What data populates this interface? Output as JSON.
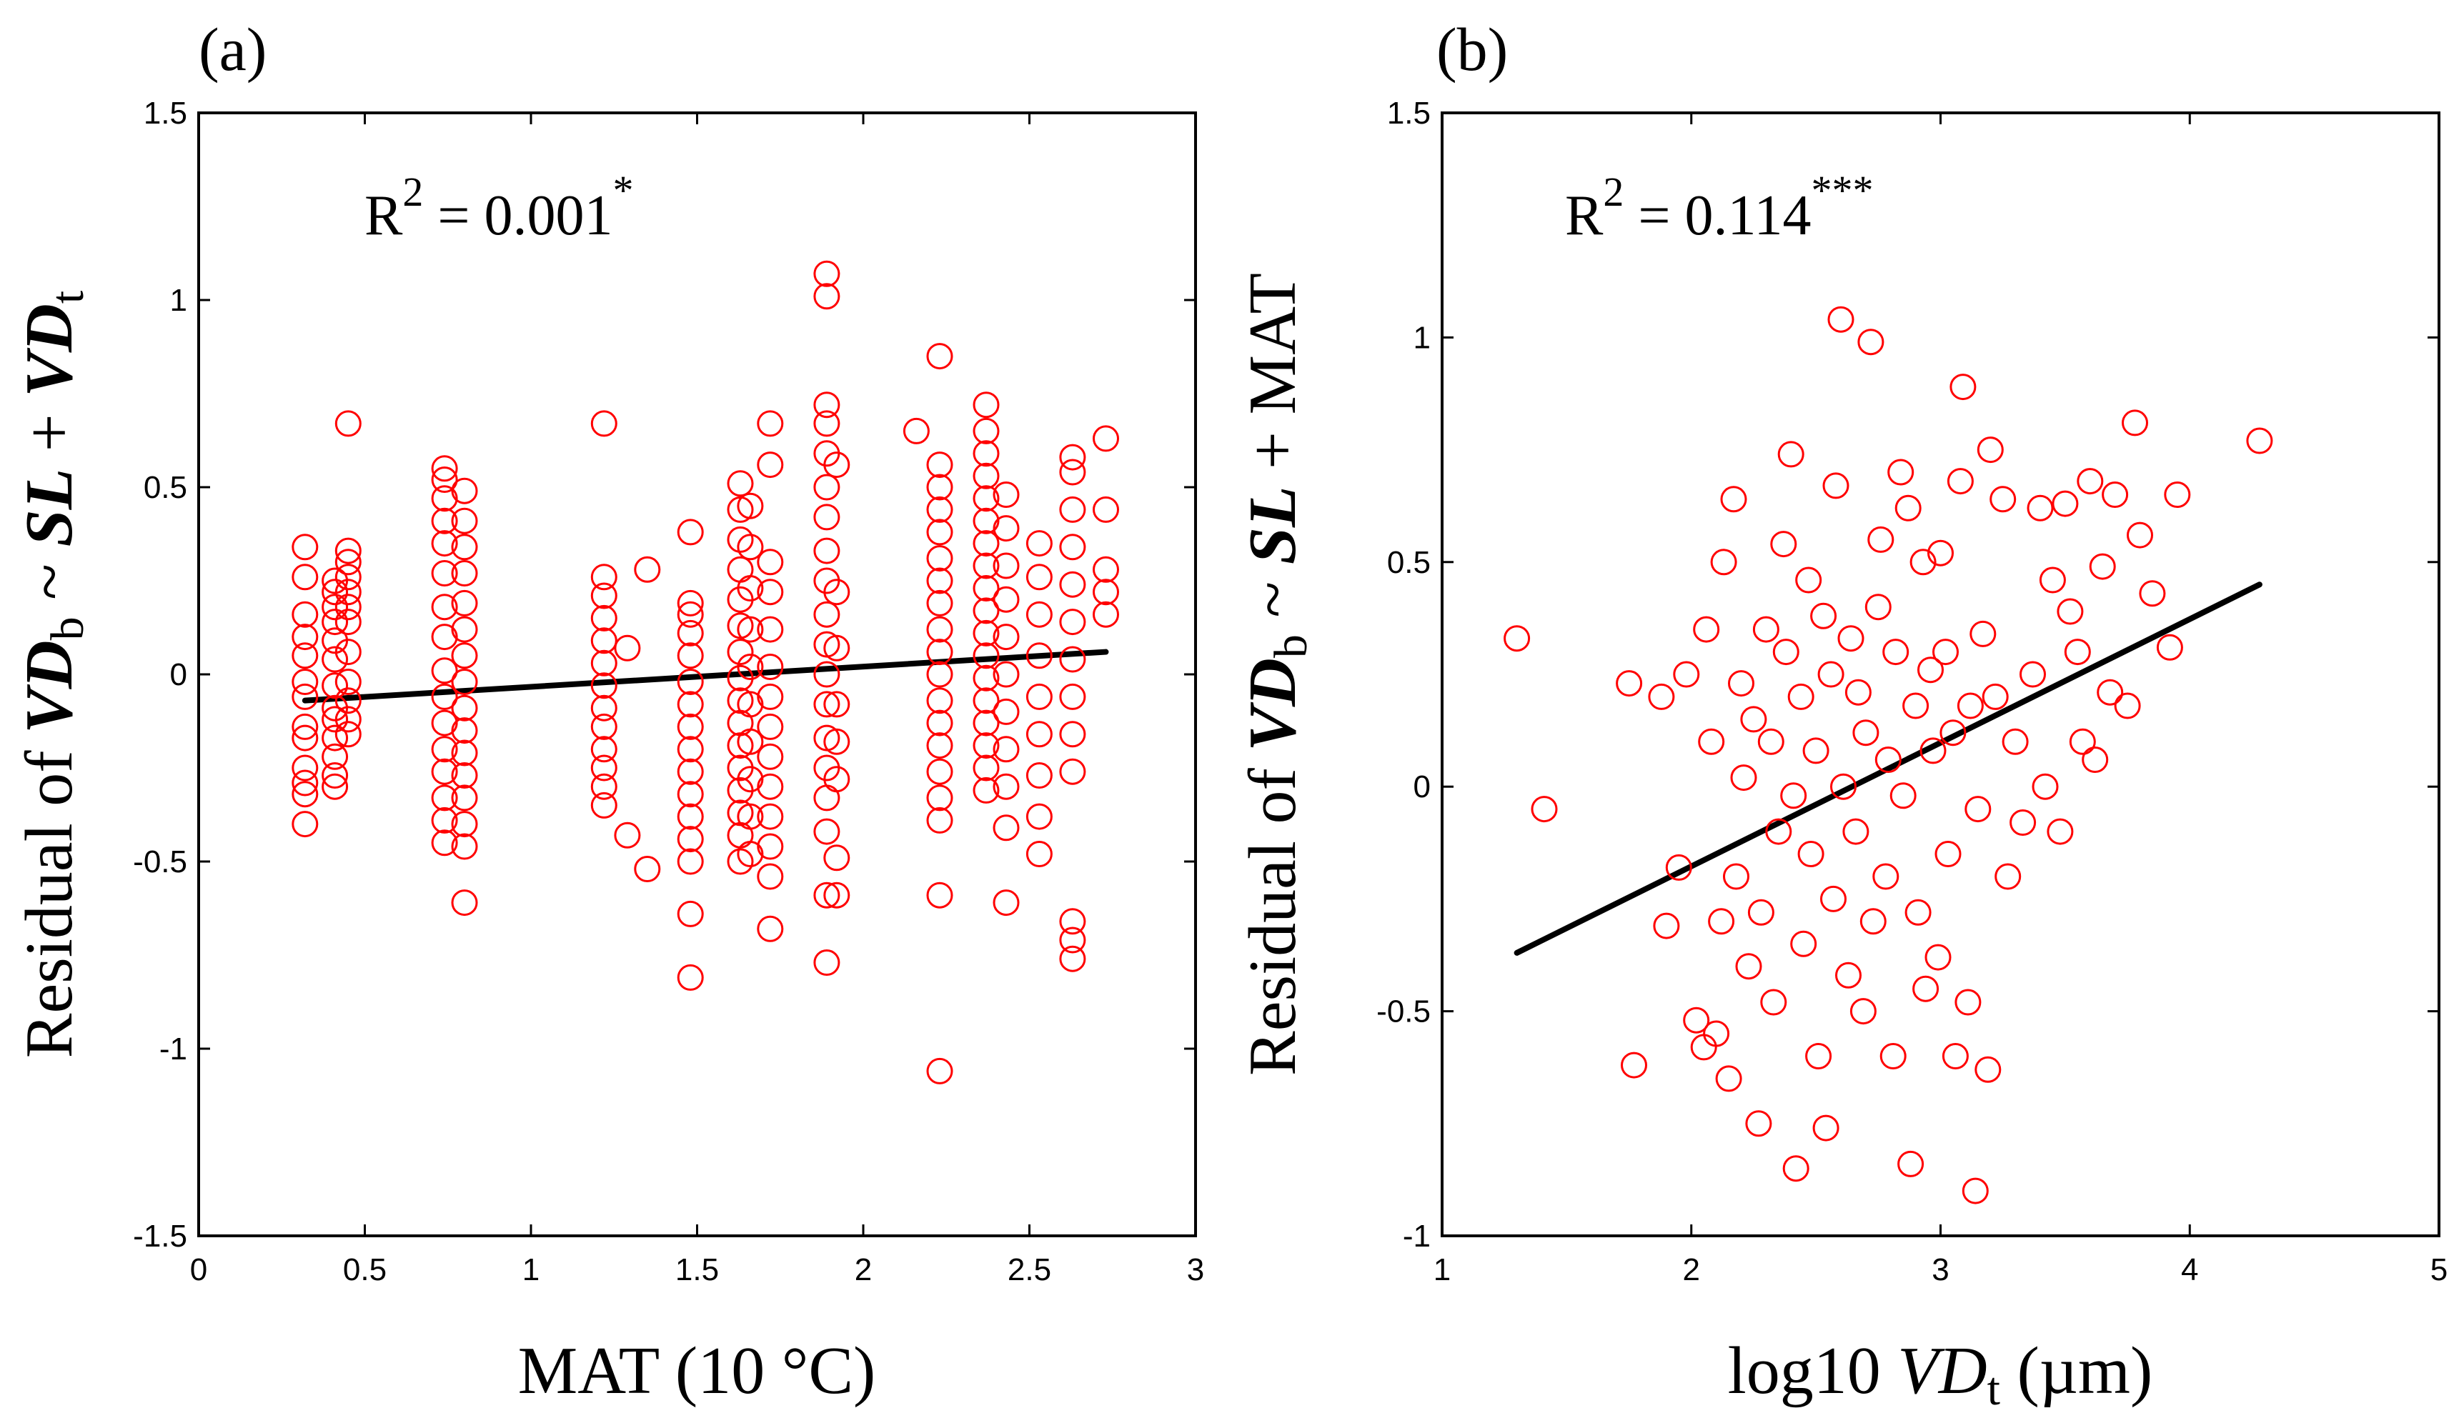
{
  "chart_data": [
    {
      "type": "scatter",
      "panel_label": "(a)",
      "xlabel": "MAT (10 °C)",
      "ylabel": {
        "prefix": "Residual of ",
        "resp": "VD",
        "resp_sub": "b",
        "tilde": " ~ ",
        "term1": "SL",
        "plus": " + ",
        "term2": "VD",
        "term2_sub": "t"
      },
      "annotation": {
        "base": "R",
        "power": "2",
        "text": " = 0.001",
        "stars": "*"
      },
      "xlim": [
        0,
        3
      ],
      "ylim": [
        -1.5,
        1.5
      ],
      "xticks": [
        0,
        0.5,
        1,
        1.5,
        2,
        2.5,
        3
      ],
      "xtick_labels": [
        "0",
        "0.5",
        "1",
        "1.5",
        "2",
        "2.5",
        "3"
      ],
      "yticks": [
        -1.5,
        -1,
        -0.5,
        0,
        0.5,
        1,
        1.5
      ],
      "ytick_labels": [
        "-1.5",
        "-1",
        "-0.5",
        "0",
        "0.5",
        "1",
        "1.5"
      ],
      "marker_color": "#ff0000",
      "line_color": "#000000",
      "fit_line": {
        "x": [
          0.32,
          2.73
        ],
        "y": [
          -0.07,
          0.06
        ]
      },
      "columns": [
        {
          "x": 0.32,
          "y": [
            0.34,
            0.26,
            0.16,
            0.1,
            0.05,
            -0.02,
            -0.06,
            -0.14,
            -0.17,
            -0.25,
            -0.29,
            -0.32,
            -0.4
          ]
        },
        {
          "x": 0.41,
          "y": [
            0.25,
            0.22,
            0.18,
            0.14,
            0.09,
            0.04,
            -0.03,
            -0.09,
            -0.12,
            -0.17,
            -0.22,
            -0.27,
            -0.3
          ]
        },
        {
          "x": 0.45,
          "y": [
            0.67,
            0.33,
            0.3,
            0.26,
            0.22,
            0.18,
            0.14,
            0.06,
            -0.02,
            -0.07,
            -0.12,
            -0.16
          ]
        },
        {
          "x": 0.74,
          "y": [
            0.55,
            0.52,
            0.47,
            0.41,
            0.35,
            0.27,
            0.18,
            0.1,
            0.01,
            -0.06,
            -0.13,
            -0.2,
            -0.26,
            -0.33,
            -0.39,
            -0.45
          ]
        },
        {
          "x": 0.8,
          "y": [
            0.49,
            0.41,
            0.34,
            0.27,
            0.19,
            0.12,
            0.05,
            -0.02,
            -0.09,
            -0.15,
            -0.21,
            -0.27,
            -0.33,
            -0.4,
            -0.46,
            -0.61
          ]
        },
        {
          "x": 1.22,
          "y": [
            0.67,
            0.26,
            0.21,
            0.15,
            0.09,
            0.03,
            -0.03,
            -0.09,
            -0.14,
            -0.2,
            -0.25,
            -0.3,
            -0.35
          ]
        },
        {
          "x": 1.29,
          "y": [
            0.07,
            -0.43
          ]
        },
        {
          "x": 1.35,
          "y": [
            0.28,
            -0.52
          ]
        },
        {
          "x": 1.48,
          "y": [
            0.38,
            0.19,
            0.16,
            0.11,
            0.05,
            -0.02,
            -0.08,
            -0.14,
            -0.2,
            -0.26,
            -0.32,
            -0.38,
            -0.44,
            -0.5,
            -0.64,
            -0.81
          ]
        },
        {
          "x": 1.63,
          "y": [
            0.51,
            0.44,
            0.36,
            0.28,
            0.2,
            0.13,
            0.06,
            -0.01,
            -0.07,
            -0.13,
            -0.19,
            -0.25,
            -0.31,
            -0.37,
            -0.43,
            -0.5
          ]
        },
        {
          "x": 1.66,
          "y": [
            0.45,
            0.34,
            0.23,
            0.12,
            0.02,
            -0.08,
            -0.18,
            -0.28,
            -0.38,
            -0.48
          ]
        },
        {
          "x": 1.72,
          "y": [
            0.67,
            0.56,
            0.3,
            0.22,
            0.12,
            0.02,
            -0.06,
            -0.14,
            -0.22,
            -0.3,
            -0.38,
            -0.46,
            -0.54,
            -0.68
          ]
        },
        {
          "x": 1.89,
          "y": [
            1.07,
            1.01,
            0.72,
            0.67,
            0.59,
            0.5,
            0.42,
            0.33,
            0.25,
            0.16,
            0.08,
            0.0,
            -0.08,
            -0.17,
            -0.25,
            -0.33,
            -0.42,
            -0.59,
            -0.77
          ]
        },
        {
          "x": 1.92,
          "y": [
            0.56,
            0.22,
            0.07,
            -0.08,
            -0.18,
            -0.28,
            -0.49,
            -0.59
          ]
        },
        {
          "x": 2.16,
          "y": [
            0.65
          ]
        },
        {
          "x": 2.23,
          "y": [
            0.85,
            0.56,
            0.5,
            0.44,
            0.38,
            0.31,
            0.25,
            0.19,
            0.12,
            0.06,
            0.0,
            -0.07,
            -0.13,
            -0.19,
            -0.26,
            -0.33,
            -0.39,
            -0.59,
            -1.06
          ]
        },
        {
          "x": 2.37,
          "y": [
            0.72,
            0.65,
            0.59,
            0.53,
            0.47,
            0.41,
            0.35,
            0.29,
            0.23,
            0.17,
            0.11,
            0.05,
            -0.01,
            -0.07,
            -0.13,
            -0.19,
            -0.25,
            -0.31
          ]
        },
        {
          "x": 2.43,
          "y": [
            0.48,
            0.39,
            0.29,
            0.2,
            0.1,
            0.0,
            -0.1,
            -0.2,
            -0.3,
            -0.41,
            -0.61
          ]
        },
        {
          "x": 2.53,
          "y": [
            0.35,
            0.26,
            0.16,
            0.05,
            -0.06,
            -0.16,
            -0.27,
            -0.38,
            -0.48
          ]
        },
        {
          "x": 2.63,
          "y": [
            0.58,
            0.54,
            0.44,
            0.34,
            0.24,
            0.14,
            0.04,
            -0.06,
            -0.16,
            -0.26,
            -0.66,
            -0.71,
            -0.76
          ]
        },
        {
          "x": 2.73,
          "y": [
            0.63,
            0.44,
            0.28,
            0.22,
            0.16
          ]
        }
      ]
    },
    {
      "type": "scatter",
      "panel_label": "(b)",
      "xlabel": {
        "prefix": "log10 ",
        "var": "VD",
        "sub": "t",
        "unit": " (µm)"
      },
      "ylabel": {
        "prefix": "Residual of ",
        "resp": "VD",
        "resp_sub": "b",
        "tilde": " ~ ",
        "term1": "SL",
        "plus": " + ",
        "term2": "MAT"
      },
      "annotation": {
        "base": "R",
        "power": "2",
        "text": " = 0.114",
        "stars": "***"
      },
      "xlim": [
        1,
        5
      ],
      "ylim": [
        -1,
        1.5
      ],
      "xticks": [
        1,
        2,
        3,
        4,
        5
      ],
      "xtick_labels": [
        "1",
        "2",
        "3",
        "4",
        "5"
      ],
      "yticks": [
        -1,
        -0.5,
        0,
        0.5,
        1,
        1.5
      ],
      "ytick_labels": [
        "-1",
        "-0.5",
        "0",
        "0.5",
        "1",
        "1.5"
      ],
      "marker_color": "#ff0000",
      "line_color": "#000000",
      "fit_line": {
        "x": [
          1.3,
          4.28
        ],
        "y": [
          -0.37,
          0.45
        ]
      },
      "points": [
        [
          1.3,
          0.33
        ],
        [
          1.41,
          -0.05
        ],
        [
          1.75,
          0.23
        ],
        [
          1.77,
          -0.62
        ],
        [
          1.88,
          0.2
        ],
        [
          1.9,
          -0.31
        ],
        [
          1.95,
          -0.18
        ],
        [
          1.98,
          0.25
        ],
        [
          2.02,
          -0.52
        ],
        [
          2.05,
          -0.58
        ],
        [
          2.06,
          0.35
        ],
        [
          2.08,
          0.1
        ],
        [
          2.1,
          -0.55
        ],
        [
          2.12,
          -0.3
        ],
        [
          2.13,
          0.5
        ],
        [
          2.15,
          -0.65
        ],
        [
          2.17,
          0.64
        ],
        [
          2.18,
          -0.2
        ],
        [
          2.2,
          0.23
        ],
        [
          2.21,
          0.02
        ],
        [
          2.23,
          -0.4
        ],
        [
          2.25,
          0.15
        ],
        [
          2.27,
          -0.75
        ],
        [
          2.28,
          -0.28
        ],
        [
          2.3,
          0.35
        ],
        [
          2.32,
          0.1
        ],
        [
          2.33,
          -0.48
        ],
        [
          2.35,
          -0.1
        ],
        [
          2.37,
          0.54
        ],
        [
          2.38,
          0.3
        ],
        [
          2.4,
          0.74
        ],
        [
          2.41,
          -0.02
        ],
        [
          2.42,
          -0.85
        ],
        [
          2.44,
          0.2
        ],
        [
          2.45,
          -0.35
        ],
        [
          2.47,
          0.46
        ],
        [
          2.48,
          -0.15
        ],
        [
          2.5,
          0.08
        ],
        [
          2.51,
          -0.6
        ],
        [
          2.53,
          0.38
        ],
        [
          2.54,
          -0.76
        ],
        [
          2.56,
          0.25
        ],
        [
          2.57,
          -0.25
        ],
        [
          2.58,
          0.67
        ],
        [
          2.6,
          1.04
        ],
        [
          2.61,
          0.0
        ],
        [
          2.63,
          -0.42
        ],
        [
          2.64,
          0.33
        ],
        [
          2.66,
          -0.1
        ],
        [
          2.67,
          0.21
        ],
        [
          2.69,
          -0.5
        ],
        [
          2.7,
          0.12
        ],
        [
          2.72,
          0.99
        ],
        [
          2.73,
          -0.3
        ],
        [
          2.75,
          0.4
        ],
        [
          2.76,
          0.55
        ],
        [
          2.78,
          -0.2
        ],
        [
          2.79,
          0.06
        ],
        [
          2.81,
          -0.6
        ],
        [
          2.82,
          0.3
        ],
        [
          2.84,
          0.7
        ],
        [
          2.85,
          -0.02
        ],
        [
          2.87,
          0.62
        ],
        [
          2.88,
          -0.84
        ],
        [
          2.9,
          0.18
        ],
        [
          2.91,
          -0.28
        ],
        [
          2.93,
          0.5
        ],
        [
          2.94,
          -0.45
        ],
        [
          2.96,
          0.26
        ],
        [
          2.97,
          0.08
        ],
        [
          2.99,
          -0.38
        ],
        [
          3.0,
          0.52
        ],
        [
          3.02,
          0.3
        ],
        [
          3.03,
          -0.15
        ],
        [
          3.05,
          0.12
        ],
        [
          3.06,
          -0.6
        ],
        [
          3.08,
          0.68
        ],
        [
          3.09,
          0.89
        ],
        [
          3.11,
          -0.48
        ],
        [
          3.12,
          0.18
        ],
        [
          3.14,
          -0.9
        ],
        [
          3.15,
          -0.05
        ],
        [
          3.17,
          0.34
        ],
        [
          3.19,
          -0.63
        ],
        [
          3.2,
          0.75
        ],
        [
          3.22,
          0.2
        ],
        [
          3.25,
          0.64
        ],
        [
          3.27,
          -0.2
        ],
        [
          3.3,
          0.1
        ],
        [
          3.33,
          -0.08
        ],
        [
          3.37,
          0.25
        ],
        [
          3.4,
          0.62
        ],
        [
          3.42,
          0.0
        ],
        [
          3.45,
          0.46
        ],
        [
          3.48,
          -0.1
        ],
        [
          3.5,
          0.63
        ],
        [
          3.52,
          0.39
        ],
        [
          3.55,
          0.3
        ],
        [
          3.57,
          0.1
        ],
        [
          3.6,
          0.68
        ],
        [
          3.62,
          0.06
        ],
        [
          3.65,
          0.49
        ],
        [
          3.68,
          0.21
        ],
        [
          3.7,
          0.65
        ],
        [
          3.75,
          0.18
        ],
        [
          3.78,
          0.81
        ],
        [
          3.8,
          0.56
        ],
        [
          3.85,
          0.43
        ],
        [
          3.92,
          0.31
        ],
        [
          3.95,
          0.65
        ],
        [
          4.28,
          0.77
        ]
      ]
    }
  ]
}
